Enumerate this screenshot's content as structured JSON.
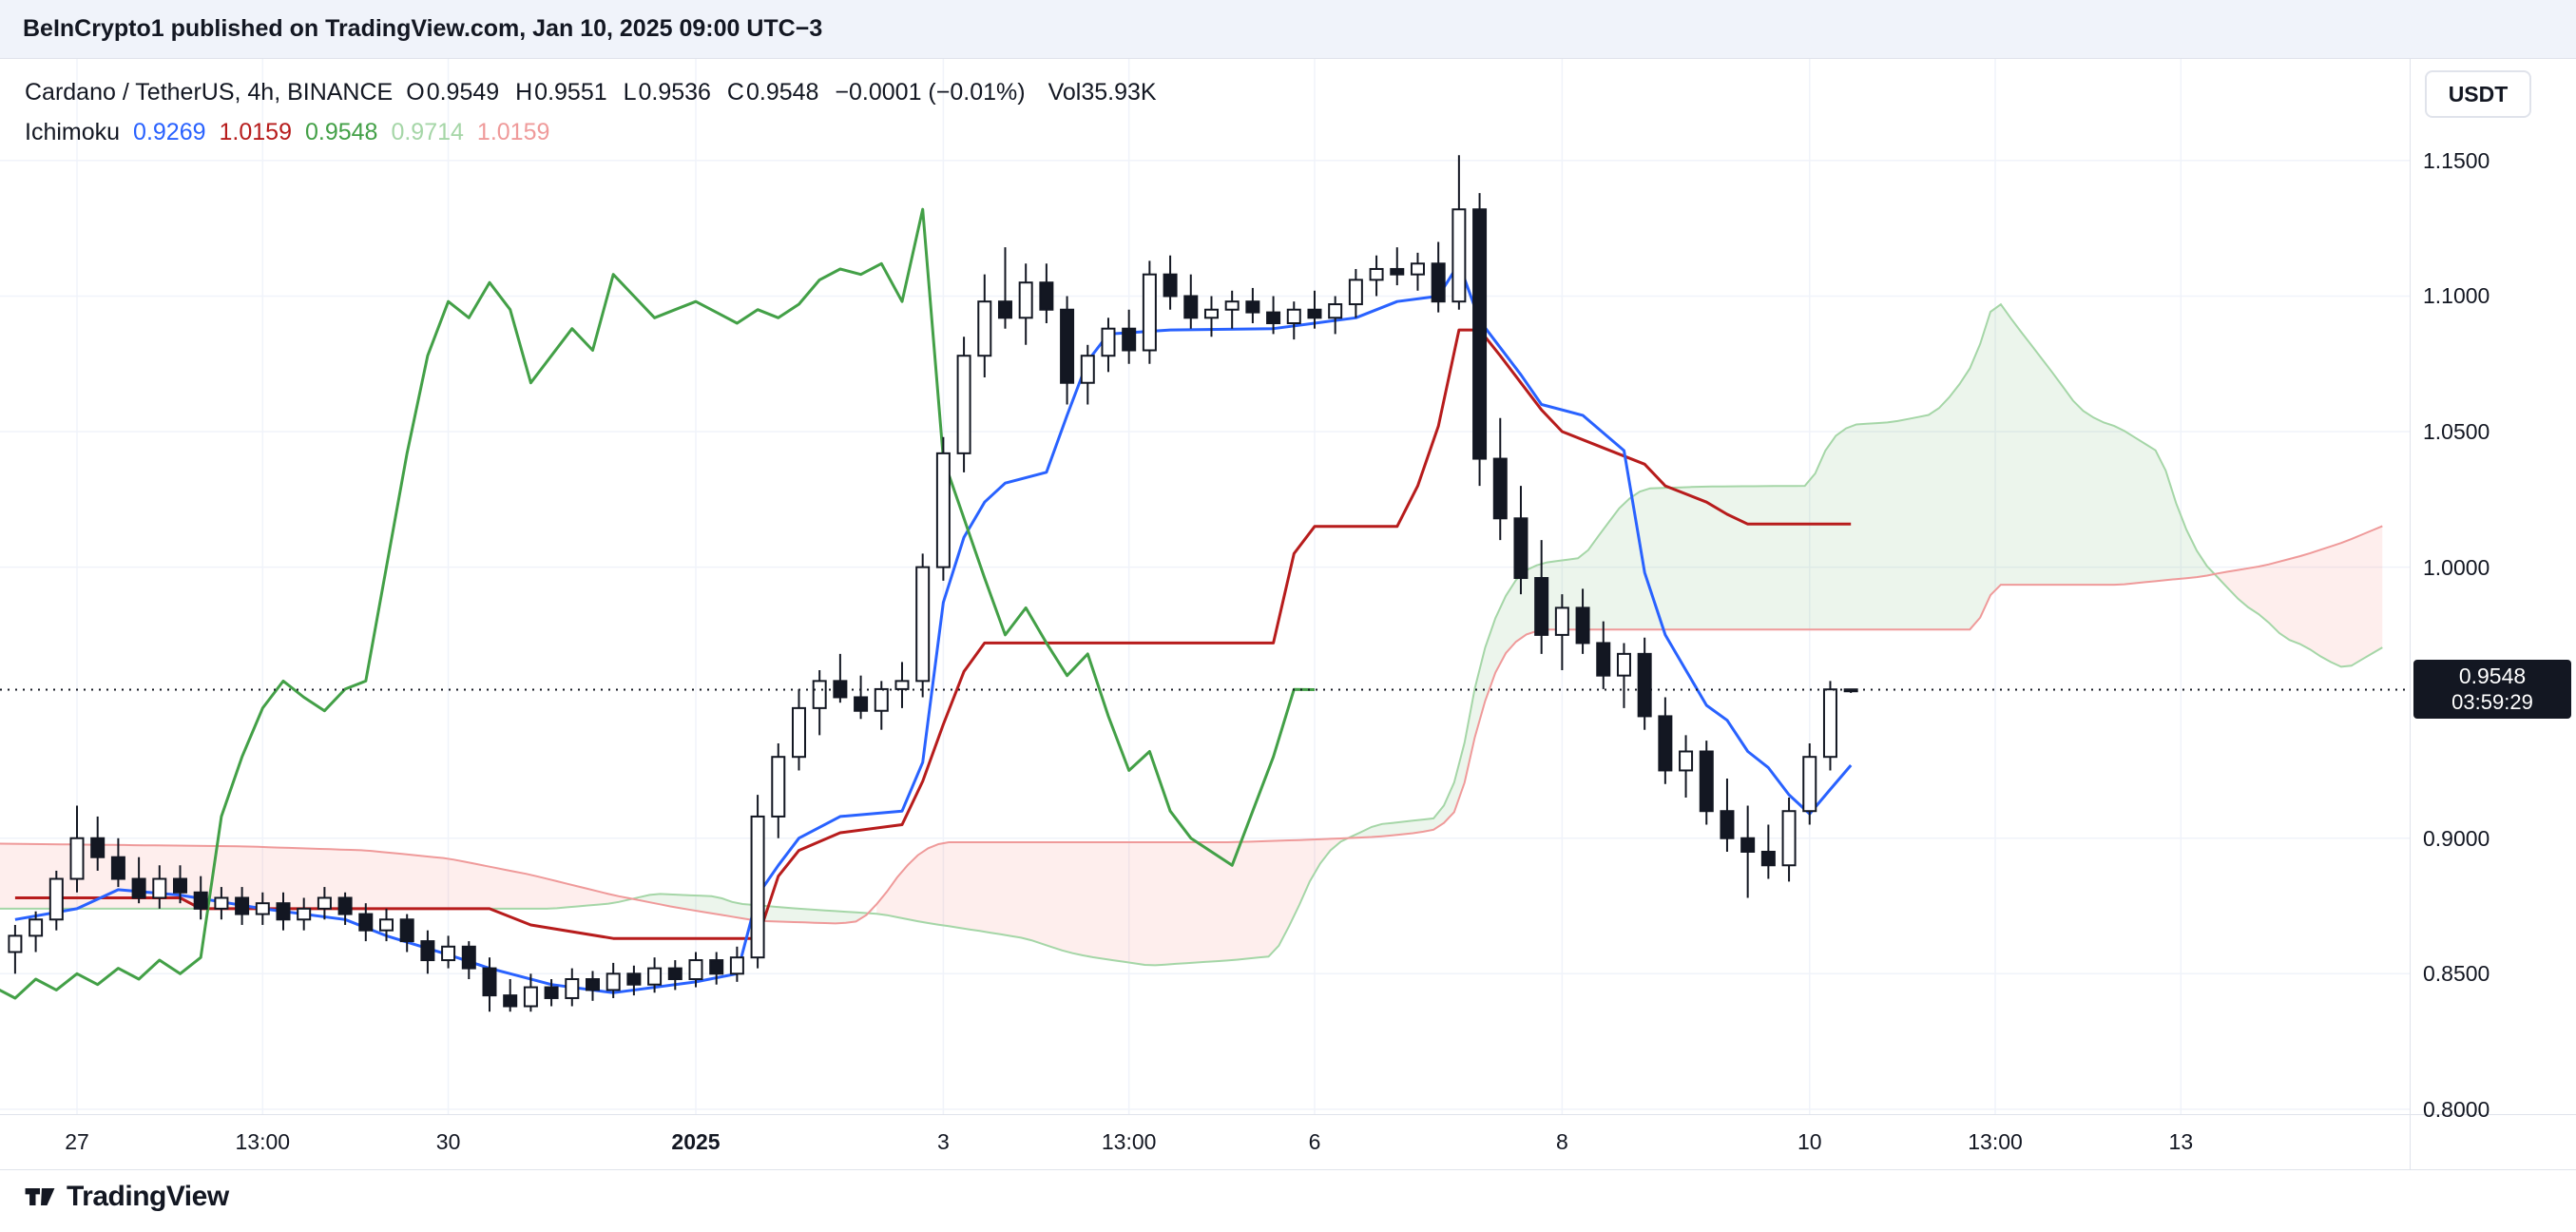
{
  "header": {
    "publish_text": "BeInCrypto1 published on TradingView.com, Jan 10, 2025 09:00 UTC−3"
  },
  "legend": {
    "symbol_title": "Cardano / TetherUS, 4h, BINANCE",
    "ohlc": {
      "o_label": "O",
      "o_value": "0.9549",
      "h_label": "H",
      "h_value": "0.9551",
      "l_label": "L",
      "l_value": "0.9536",
      "c_label": "C",
      "c_value": "0.9548",
      "change": "−0.0001 (−0.01%)",
      "vol_label": "Vol",
      "vol_value": "35.93K"
    },
    "indicator": {
      "name": "Ichimoku",
      "values": [
        {
          "value": "0.9269",
          "color": "#2962FF"
        },
        {
          "value": "1.0159",
          "color": "#B71C1C"
        },
        {
          "value": "0.9548",
          "color": "#43A047"
        },
        {
          "value": "0.9714",
          "color": "#A5D6A7"
        },
        {
          "value": "1.0159",
          "color": "#EF9A9A"
        }
      ]
    }
  },
  "price_axis": {
    "currency_button": "USDT",
    "last_price": {
      "value": "0.9548",
      "countdown": "03:59:29"
    }
  },
  "footer": {
    "logo_text": "TradingView"
  },
  "chart_data": {
    "type": "candlestick",
    "title": "Cardano / TetherUS, 4h, BINANCE",
    "symbol": "ADA/USDT",
    "interval": "4h",
    "exchange": "BINANCE",
    "indicator": "Ichimoku Cloud",
    "grid": true,
    "xlim": [
      -3.733,
      113.09
    ],
    "ylim": [
      0.7982,
      1.1875
    ],
    "last_price": 0.9548,
    "price_ticks": [
      {
        "label": "1.1500",
        "value": 1.15
      },
      {
        "label": "1.1000",
        "value": 1.1
      },
      {
        "label": "1.0500",
        "value": 1.05
      },
      {
        "label": "1.0000",
        "value": 1.0
      },
      {
        "label": "0.9000",
        "value": 0.9
      },
      {
        "label": "0.8500",
        "value": 0.85
      },
      {
        "label": "0.8000",
        "value": 0.8
      }
    ],
    "time_ticks": [
      {
        "i": 0,
        "label": "27"
      },
      {
        "i": 9,
        "label": "13:00"
      },
      {
        "i": 18,
        "label": "30"
      },
      {
        "i": 30,
        "label": "2025",
        "strong": true
      },
      {
        "i": 42,
        "label": "3"
      },
      {
        "i": 51,
        "label": "13:00"
      },
      {
        "i": 60,
        "label": "6"
      },
      {
        "i": 72,
        "label": "8"
      },
      {
        "i": 84,
        "label": "10"
      },
      {
        "i": 93,
        "label": "13:00"
      },
      {
        "i": 102,
        "label": "13"
      }
    ],
    "first_index": -3,
    "candles": [
      [
        0.858,
        0.868,
        0.85,
        0.864
      ],
      [
        0.864,
        0.873,
        0.858,
        0.87
      ],
      [
        0.87,
        0.888,
        0.866,
        0.885
      ],
      [
        0.885,
        0.912,
        0.88,
        0.9
      ],
      [
        0.9,
        0.908,
        0.888,
        0.893
      ],
      [
        0.893,
        0.9,
        0.882,
        0.885
      ],
      [
        0.885,
        0.893,
        0.876,
        0.878
      ],
      [
        0.878,
        0.89,
        0.874,
        0.885
      ],
      [
        0.885,
        0.89,
        0.876,
        0.88
      ],
      [
        0.88,
        0.886,
        0.87,
        0.874
      ],
      [
        0.874,
        0.882,
        0.87,
        0.878
      ],
      [
        0.878,
        0.882,
        0.868,
        0.872
      ],
      [
        0.872,
        0.88,
        0.868,
        0.876
      ],
      [
        0.876,
        0.88,
        0.866,
        0.87
      ],
      [
        0.87,
        0.878,
        0.866,
        0.874
      ],
      [
        0.874,
        0.882,
        0.87,
        0.878
      ],
      [
        0.878,
        0.88,
        0.868,
        0.872
      ],
      [
        0.872,
        0.876,
        0.862,
        0.866
      ],
      [
        0.866,
        0.874,
        0.862,
        0.87
      ],
      [
        0.87,
        0.872,
        0.858,
        0.862
      ],
      [
        0.862,
        0.866,
        0.85,
        0.855
      ],
      [
        0.855,
        0.864,
        0.852,
        0.86
      ],
      [
        0.86,
        0.862,
        0.848,
        0.852
      ],
      [
        0.852,
        0.856,
        0.836,
        0.842
      ],
      [
        0.842,
        0.848,
        0.836,
        0.838
      ],
      [
        0.838,
        0.85,
        0.836,
        0.845
      ],
      [
        0.845,
        0.848,
        0.838,
        0.841
      ],
      [
        0.841,
        0.852,
        0.838,
        0.848
      ],
      [
        0.848,
        0.851,
        0.84,
        0.844
      ],
      [
        0.844,
        0.854,
        0.841,
        0.85
      ],
      [
        0.85,
        0.853,
        0.842,
        0.846
      ],
      [
        0.846,
        0.856,
        0.843,
        0.852
      ],
      [
        0.852,
        0.855,
        0.844,
        0.848
      ],
      [
        0.848,
        0.858,
        0.845,
        0.855
      ],
      [
        0.855,
        0.858,
        0.846,
        0.85
      ],
      [
        0.85,
        0.86,
        0.847,
        0.856
      ],
      [
        0.856,
        0.916,
        0.852,
        0.908
      ],
      [
        0.908,
        0.935,
        0.9,
        0.93
      ],
      [
        0.93,
        0.955,
        0.925,
        0.948
      ],
      [
        0.948,
        0.962,
        0.938,
        0.958
      ],
      [
        0.958,
        0.968,
        0.95,
        0.952
      ],
      [
        0.952,
        0.96,
        0.944,
        0.947
      ],
      [
        0.947,
        0.958,
        0.94,
        0.955
      ],
      [
        0.955,
        0.965,
        0.948,
        0.958
      ],
      [
        0.958,
        1.005,
        0.952,
        1.0
      ],
      [
        1.0,
        1.048,
        0.995,
        1.042
      ],
      [
        1.042,
        1.085,
        1.035,
        1.078
      ],
      [
        1.078,
        1.108,
        1.07,
        1.098
      ],
      [
        1.098,
        1.118,
        1.088,
        1.092
      ],
      [
        1.092,
        1.112,
        1.082,
        1.105
      ],
      [
        1.105,
        1.112,
        1.09,
        1.095
      ],
      [
        1.095,
        1.1,
        1.06,
        1.068
      ],
      [
        1.068,
        1.082,
        1.06,
        1.078
      ],
      [
        1.078,
        1.092,
        1.072,
        1.088
      ],
      [
        1.088,
        1.095,
        1.075,
        1.08
      ],
      [
        1.08,
        1.113,
        1.075,
        1.108
      ],
      [
        1.108,
        1.115,
        1.095,
        1.1
      ],
      [
        1.1,
        1.108,
        1.088,
        1.092
      ],
      [
        1.092,
        1.1,
        1.085,
        1.095
      ],
      [
        1.095,
        1.102,
        1.088,
        1.098
      ],
      [
        1.098,
        1.103,
        1.09,
        1.094
      ],
      [
        1.094,
        1.1,
        1.086,
        1.09
      ],
      [
        1.09,
        1.098,
        1.084,
        1.095
      ],
      [
        1.095,
        1.102,
        1.088,
        1.092
      ],
      [
        1.092,
        1.1,
        1.086,
        1.097
      ],
      [
        1.097,
        1.11,
        1.092,
        1.106
      ],
      [
        1.106,
        1.115,
        1.1,
        1.11
      ],
      [
        1.11,
        1.118,
        1.104,
        1.108
      ],
      [
        1.108,
        1.116,
        1.102,
        1.112
      ],
      [
        1.112,
        1.12,
        1.094,
        1.098
      ],
      [
        1.098,
        1.152,
        1.095,
        1.132
      ],
      [
        1.132,
        1.138,
        1.03,
        1.04
      ],
      [
        1.04,
        1.055,
        1.01,
        1.018
      ],
      [
        1.018,
        1.03,
        0.99,
        0.996
      ],
      [
        0.996,
        1.01,
        0.968,
        0.975
      ],
      [
        0.975,
        0.99,
        0.962,
        0.985
      ],
      [
        0.985,
        0.992,
        0.968,
        0.972
      ],
      [
        0.972,
        0.98,
        0.955,
        0.96
      ],
      [
        0.96,
        0.972,
        0.948,
        0.968
      ],
      [
        0.968,
        0.974,
        0.94,
        0.945
      ],
      [
        0.945,
        0.952,
        0.92,
        0.925
      ],
      [
        0.925,
        0.938,
        0.915,
        0.932
      ],
      [
        0.932,
        0.936,
        0.905,
        0.91
      ],
      [
        0.91,
        0.922,
        0.895,
        0.9
      ],
      [
        0.9,
        0.912,
        0.878,
        0.895
      ],
      [
        0.895,
        0.905,
        0.885,
        0.89
      ],
      [
        0.89,
        0.915,
        0.884,
        0.91
      ],
      [
        0.91,
        0.935,
        0.905,
        0.93
      ],
      [
        0.93,
        0.958,
        0.925,
        0.9549
      ],
      [
        0.9549,
        0.9551,
        0.9536,
        0.9548
      ]
    ],
    "ichimoku": {
      "displacement": 26,
      "tenkan": [
        [
          -3,
          0.87
        ],
        [
          0,
          0.874
        ],
        [
          2,
          0.881
        ],
        [
          5,
          0.879
        ],
        [
          9,
          0.874
        ],
        [
          13,
          0.87
        ],
        [
          15,
          0.864
        ],
        [
          18,
          0.857
        ],
        [
          20,
          0.852
        ],
        [
          23,
          0.846
        ],
        [
          26,
          0.843
        ],
        [
          30,
          0.847
        ],
        [
          32,
          0.85
        ],
        [
          33,
          0.879
        ],
        [
          34,
          0.89
        ],
        [
          35,
          0.9
        ],
        [
          37,
          0.908
        ],
        [
          40,
          0.91
        ],
        [
          41,
          0.928
        ],
        [
          42,
          0.987
        ],
        [
          43,
          1.011
        ],
        [
          44,
          1.024
        ],
        [
          45,
          1.031
        ],
        [
          47,
          1.035
        ],
        [
          48,
          1.056
        ],
        [
          49,
          1.076
        ],
        [
          50,
          1.086
        ],
        [
          53,
          1.0875
        ],
        [
          58,
          1.088
        ],
        [
          60,
          1.09
        ],
        [
          62,
          1.092
        ],
        [
          64,
          1.098
        ],
        [
          66,
          1.1
        ],
        [
          67,
          1.112
        ],
        [
          68,
          1.091
        ],
        [
          69,
          1.081
        ],
        [
          70,
          1.071
        ],
        [
          71,
          1.06
        ],
        [
          73,
          1.056
        ],
        [
          75,
          1.043
        ],
        [
          76,
          0.998
        ],
        [
          77,
          0.975
        ],
        [
          78,
          0.962
        ],
        [
          79,
          0.949
        ],
        [
          80,
          0.9435
        ],
        [
          81,
          0.932
        ],
        [
          82,
          0.926
        ],
        [
          83,
          0.916
        ],
        [
          84,
          0.909
        ],
        [
          85,
          0.918
        ],
        [
          86,
          0.9269
        ]
      ],
      "kijun": [
        [
          -3,
          0.878
        ],
        [
          5,
          0.878
        ],
        [
          6,
          0.874
        ],
        [
          20,
          0.874
        ],
        [
          22,
          0.868
        ],
        [
          26,
          0.863
        ],
        [
          33,
          0.863
        ],
        [
          34,
          0.886
        ],
        [
          35,
          0.8955
        ],
        [
          37,
          0.902
        ],
        [
          40,
          0.905
        ],
        [
          41,
          0.921
        ],
        [
          42,
          0.942
        ],
        [
          43,
          0.9615
        ],
        [
          44,
          0.972
        ],
        [
          58,
          0.972
        ],
        [
          59,
          1.005
        ],
        [
          60,
          1.015
        ],
        [
          64,
          1.015
        ],
        [
          65,
          1.03
        ],
        [
          66,
          1.052
        ],
        [
          67,
          1.0875
        ],
        [
          68,
          1.0875
        ],
        [
          69,
          1.078
        ],
        [
          70,
          1.068
        ],
        [
          71,
          1.058
        ],
        [
          72,
          1.05
        ],
        [
          74,
          1.044
        ],
        [
          76,
          1.038
        ],
        [
          77,
          1.03
        ],
        [
          79,
          1.024
        ],
        [
          80,
          1.0195
        ],
        [
          81,
          1.0159
        ],
        [
          86,
          1.0159
        ]
      ],
      "senkou_b": [
        [
          -4,
          0.898
        ],
        [
          8,
          0.897
        ],
        [
          14,
          0.8955
        ],
        [
          18,
          0.8925
        ],
        [
          22,
          0.8865
        ],
        [
          26,
          0.879
        ],
        [
          29,
          0.8745
        ],
        [
          31,
          0.872
        ],
        [
          33,
          0.8695
        ],
        [
          37,
          0.8685
        ],
        [
          38,
          0.8695
        ],
        [
          39,
          0.8775
        ],
        [
          40,
          0.888
        ],
        [
          41,
          0.8955
        ],
        [
          42,
          0.8985
        ],
        [
          56,
          0.8985
        ],
        [
          60,
          0.8995
        ],
        [
          63,
          0.9005
        ],
        [
          65,
          0.902
        ],
        [
          66,
          0.9035
        ],
        [
          67,
          0.9115
        ],
        [
          68,
          0.945
        ],
        [
          69,
          0.966
        ],
        [
          70,
          0.9745
        ],
        [
          71,
          0.977
        ],
        [
          92,
          0.977
        ],
        [
          93,
          0.9935
        ],
        [
          99,
          0.9935
        ],
        [
          101,
          0.995
        ],
        [
          103,
          0.9965
        ],
        [
          104,
          0.998
        ],
        [
          106,
          1.0005
        ],
        [
          108,
          1.0045
        ],
        [
          110,
          1.0095
        ],
        [
          112,
          1.0159
        ]
      ],
      "current_values": {
        "tenkan": 0.9269,
        "kijun": 1.0159,
        "chikou": 0.9548,
        "senkou_a": 0.9714,
        "senkou_b": 1.0159
      }
    },
    "colors": {
      "tenkan": "#2962FF",
      "kijun": "#B71C1C",
      "chikou": "#43A047",
      "senkou_a": "#A5D6A7",
      "senkou_b": "#EF9A9A",
      "cloud_up": "rgba(67,160,71,0.10)",
      "cloud_down": "rgba(244,67,54,0.09)",
      "candle_up": "#FFFFFF",
      "candle_down": "#131722",
      "grid": "#F0F3FA",
      "last_price_line": "#131722"
    }
  }
}
